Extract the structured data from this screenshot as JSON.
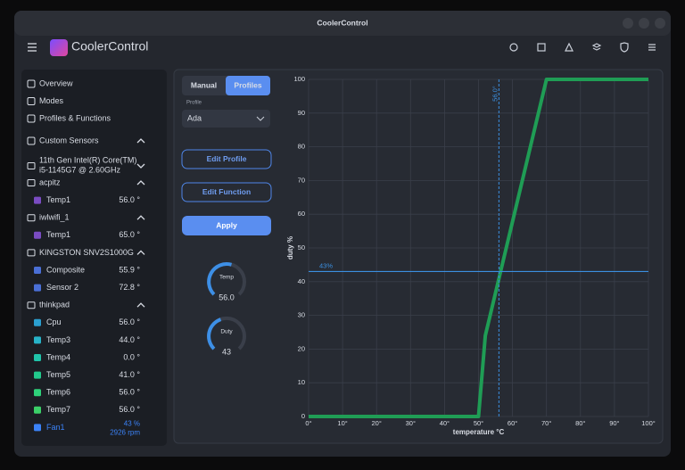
{
  "window": {
    "title": "CoolerControl"
  },
  "header": {
    "app_name": "CoolerControl"
  },
  "sidebar": {
    "nav": [
      "Overview",
      "Modes",
      "Profiles & Functions"
    ],
    "custom_sensors": "Custom Sensors",
    "devices": [
      {
        "name_lines": [
          "11th Gen Intel(R) Core(TM)",
          "i5-1145G7 @ 2.60GHz"
        ],
        "sensors": []
      },
      {
        "name": "acpitz",
        "sensors": [
          {
            "name": "Temp1",
            "reading": "56.0 °",
            "color": "#7a4cc2"
          }
        ]
      },
      {
        "name": "iwlwifi_1",
        "sensors": [
          {
            "name": "Temp1",
            "reading": "65.0 °",
            "color": "#7a4cc2"
          }
        ]
      },
      {
        "name": "KINGSTON SNV2S1000G",
        "sensors": [
          {
            "name": "Composite",
            "reading": "55.9 °",
            "color": "#4a6fd6"
          },
          {
            "name": "Sensor 2",
            "reading": "72.8 °",
            "color": "#4a6fd6"
          }
        ]
      },
      {
        "name": "thinkpad",
        "sensors": [
          {
            "name": "Cpu",
            "reading": "56.0 °",
            "color": "#2b9fd0"
          },
          {
            "name": "Temp3",
            "reading": "44.0 °",
            "color": "#27b3c8"
          },
          {
            "name": "Temp4",
            "reading": "0.0 °",
            "color": "#20c4aa"
          },
          {
            "name": "Temp5",
            "reading": "41.0 °",
            "color": "#22c98c"
          },
          {
            "name": "Temp6",
            "reading": "56.0 °",
            "color": "#2ed27a"
          },
          {
            "name": "Temp7",
            "reading": "56.0 °",
            "color": "#3bd068"
          },
          {
            "name": "Fan1",
            "reading": "43 %",
            "reading2": "2926 rpm",
            "color": "#3b82f6"
          }
        ]
      }
    ]
  },
  "controls": {
    "tabs": [
      "Manual",
      "Profiles"
    ],
    "profile_label": "Profile",
    "profile": "Ada",
    "buttons": [
      "Edit Profile",
      "Edit Function",
      "Apply"
    ],
    "gauges": [
      {
        "label": "Temp",
        "value": "56.0"
      },
      {
        "label": "Duty",
        "value": "43"
      }
    ]
  },
  "chart_data": {
    "type": "line",
    "x": [
      0,
      50,
      52,
      70,
      100
    ],
    "values": [
      0,
      0,
      24,
      100,
      100
    ],
    "color": "#1f9d55",
    "xlim": [
      0,
      100
    ],
    "ylim": [
      0,
      100
    ],
    "xticks": [
      {
        "value": 0,
        "label": "0°"
      },
      {
        "value": 10,
        "label": "10°"
      },
      {
        "value": 20,
        "label": "20°"
      },
      {
        "value": 30,
        "label": "30°"
      },
      {
        "value": 40,
        "label": "40°"
      },
      {
        "value": 50,
        "label": "50°"
      },
      {
        "value": 60,
        "label": "60°"
      },
      {
        "value": 70,
        "label": "70°"
      },
      {
        "value": 80,
        "label": "80°"
      },
      {
        "value": 90,
        "label": "90°"
      },
      {
        "value": 100,
        "label": "100°"
      }
    ],
    "yticks": [
      0,
      10,
      20,
      30,
      40,
      50,
      60,
      70,
      80,
      90,
      100
    ],
    "xlabel": "temperature °C",
    "ylabel": "duty %",
    "grid": true,
    "markers": [
      {
        "axis": "x",
        "value": 56,
        "label": "56.0°"
      },
      {
        "axis": "y",
        "value": 43,
        "label": "43%"
      }
    ]
  }
}
